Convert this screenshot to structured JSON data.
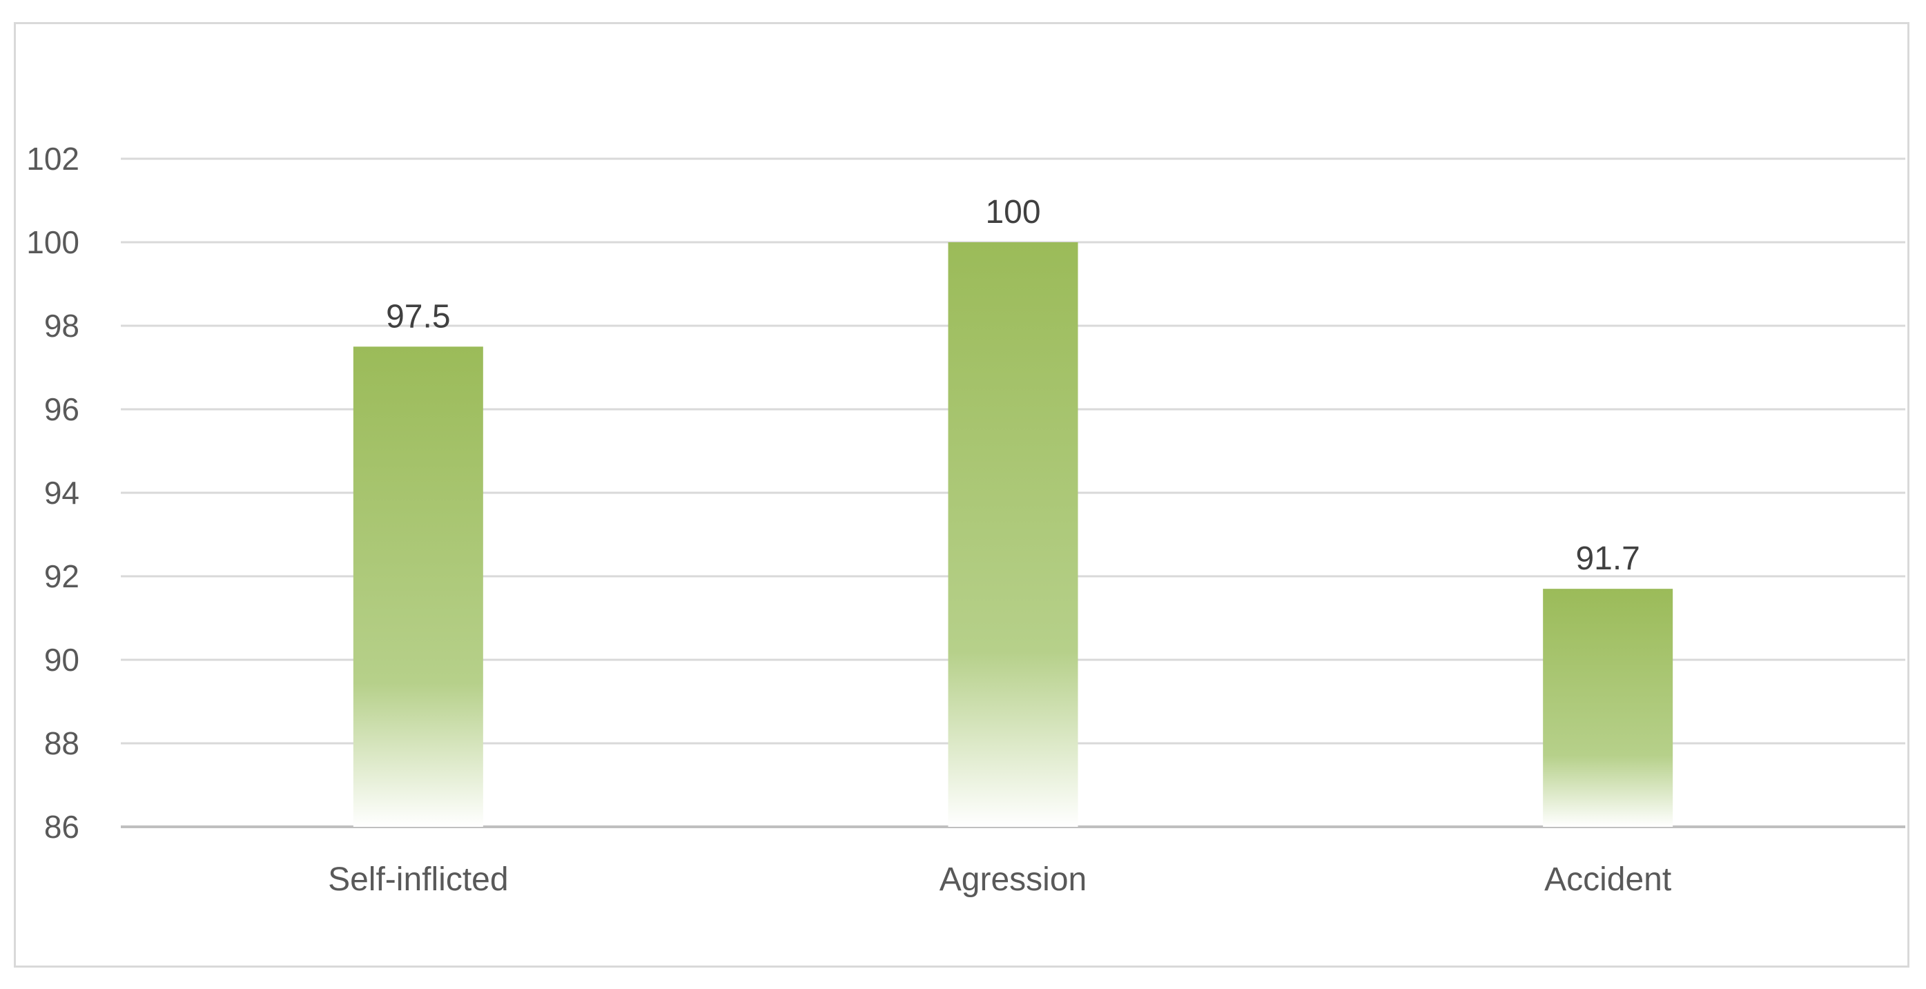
{
  "chart_data": {
    "type": "bar",
    "title": "",
    "xlabel": "",
    "ylabel": "",
    "categories": [
      "Self-inflicted",
      "Agression",
      "Accident"
    ],
    "values": [
      97.5,
      100,
      91.7
    ],
    "data_labels": [
      "97.5",
      "100",
      "91.7"
    ],
    "ylim": [
      86,
      102
    ],
    "yticks": [
      86,
      88,
      90,
      92,
      94,
      96,
      98,
      100,
      102
    ],
    "grid": true,
    "legend": "none",
    "bar_color": "#9bbb59",
    "bar_fill": "gradient-fade-to-white-at-bottom"
  }
}
